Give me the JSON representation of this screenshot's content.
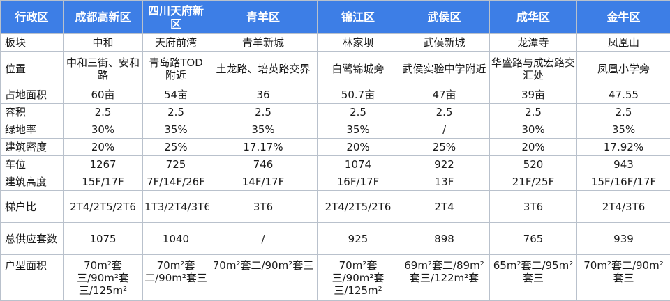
{
  "table": {
    "header": [
      "行政区",
      "成都高新区",
      "四川天府新区",
      "青羊区",
      "锦江区",
      "武侯区",
      "成华区",
      "金牛区"
    ],
    "rows": [
      {
        "label": "板块",
        "cells": [
          "中和",
          "天府前湾",
          "青羊新城",
          "林家坝",
          "武侯新城",
          "龙潭寺",
          "凤凰山"
        ]
      },
      {
        "label": "位置",
        "cells": [
          "中和三街、安和路",
          "青岛路TOD附近",
          "土龙路、培英路交界",
          "白鹭锦城旁",
          "武侯实验中学附近",
          "华盛路与成宏路交汇处",
          "凤凰小学旁"
        ]
      },
      {
        "label": "占地面积",
        "cells": [
          "60亩",
          "54亩",
          "36",
          "50.7亩",
          "47亩",
          "39亩",
          "47.55"
        ]
      },
      {
        "label": "容积",
        "cells": [
          "2.5",
          "2.5",
          "2.5",
          "2.5",
          "2.5",
          "2.5",
          "2.5"
        ]
      },
      {
        "label": "绿地率",
        "cells": [
          "30%",
          "35%",
          "35%",
          "35%",
          "/",
          "30%",
          "35%"
        ]
      },
      {
        "label": "建筑密度",
        "cells": [
          "20%",
          "25%",
          "17.17%",
          "20%",
          "25%",
          "20%",
          "17.92%"
        ]
      },
      {
        "label": "车位",
        "cells": [
          "1267",
          "725",
          "746",
          "1074",
          "922",
          "520",
          "943"
        ]
      },
      {
        "label": "建筑高度",
        "cells": [
          "15F/17F",
          "7F/14F/26F",
          "14F/17F",
          "16F/17F",
          "13F",
          "21F/25F",
          "15F/16F/17F"
        ]
      },
      {
        "label": "梯户比",
        "cells": [
          "2T4/2T5/2T6",
          "1T3/2T4/3T6",
          "3T6",
          "2T4/2T5/2T6",
          "2T4",
          "3T6",
          "2T4/3T6"
        ]
      },
      {
        "label": "总供应套数",
        "cells": [
          "1075",
          "1040",
          "/",
          "925",
          "898",
          "765",
          "939"
        ]
      },
      {
        "label": "户型面积",
        "cells": [
          "70m²套三/90m²套三/125m²",
          "70m²套二/90m²套三",
          "70m²套二/90m²套三",
          "70m²套三/90m²套三/125m²",
          "69m²套二/89m²套三/122m²套",
          "65m²套二/95m²套三",
          "70m²套二/90m²套三"
        ]
      }
    ]
  }
}
